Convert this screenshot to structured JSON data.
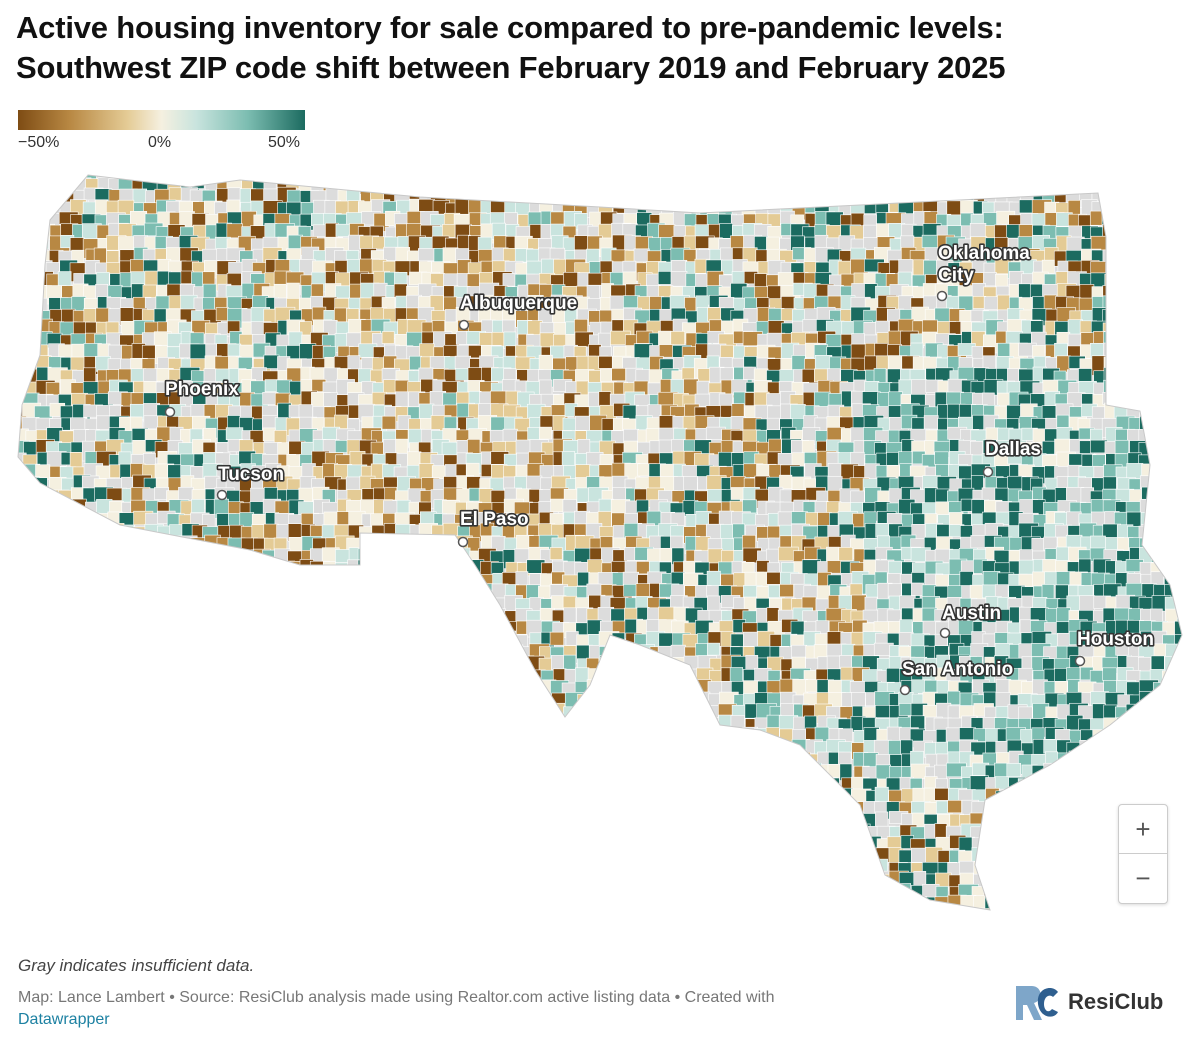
{
  "title_line1": "Active housing inventory for sale compared to pre-pandemic levels:",
  "title_line2": "Southwest ZIP code shift between February 2019 and February 2025",
  "legend": {
    "min_label": "−50%",
    "mid_label": "0%",
    "max_label": "50%",
    "colors": [
      "#7e4c14",
      "#b88843",
      "#e4cb95",
      "#f5f0e0",
      "#c9e4de",
      "#7cbdb1",
      "#1c6b60"
    ],
    "no_data_color": "#dcdcdc"
  },
  "cities": [
    {
      "name": "Phoenix"
    },
    {
      "name": "Tucson"
    },
    {
      "name": "Albuquerque"
    },
    {
      "name": "El Paso"
    },
    {
      "name_line1": "Oklahoma",
      "name_line2": "City"
    },
    {
      "name": "Dallas"
    },
    {
      "name": "Austin"
    },
    {
      "name": "San Antonio"
    },
    {
      "name": "Houston"
    }
  ],
  "zoom": {
    "in_label": "+",
    "out_label": "−"
  },
  "note": "Gray indicates insufficient data.",
  "credit": "Map: Lance Lambert • Source: ResiClub analysis made using Realtor.com active listing data • Created with",
  "credit_link": "Datawrapper",
  "brand": "ResiClub"
}
